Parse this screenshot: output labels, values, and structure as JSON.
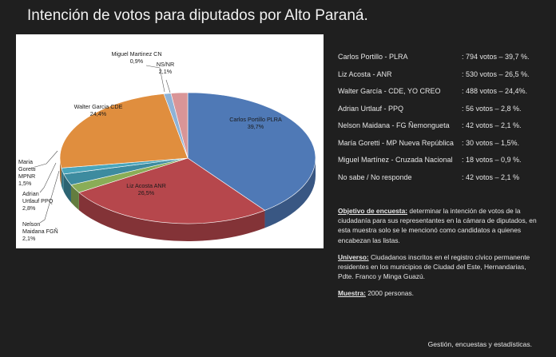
{
  "title": "Intención de votos para diputados por Alto Paraná.",
  "chart_data": {
    "type": "pie",
    "slices": [
      {
        "label": "Carlos Portillo PLRA",
        "value": 39.7,
        "pct_text": "39,7%",
        "color": "#4f79b6"
      },
      {
        "label": "Liz Acosta ANR",
        "value": 26.5,
        "pct_text": "26,5%",
        "color": "#b6474c"
      },
      {
        "label": "Nelson Maidana FGÑ",
        "value": 2.1,
        "pct_text": "2,1%",
        "color": "#8aad57"
      },
      {
        "label": "Adrian Urtlauf PPQ",
        "value": 2.8,
        "pct_text": "2,8%",
        "color": "#3d8b9f"
      },
      {
        "label": "Maria Goretti MPNR",
        "value": 1.5,
        "pct_text": "1,5%",
        "color": "#4aa5bb"
      },
      {
        "label": "Walter Garcia CDE",
        "value": 24.4,
        "pct_text": "24,4%",
        "color": "#e08e3e"
      },
      {
        "label": "Miguel Martinez CN",
        "value": 0.9,
        "pct_text": "0,9%",
        "color": "#8eb2d6"
      },
      {
        "label": "NS/NR",
        "value": 2.1,
        "pct_text": "2,1%",
        "color": "#d99597"
      }
    ]
  },
  "results": [
    {
      "name": "Carlos Portillo -  PLRA",
      "votes": ": 794 votos – 39,7 %."
    },
    {
      "name": "Liz Acosta - ANR",
      "votes": ": 530 votos – 26,5 %."
    },
    {
      "name": "Walter García - CDE, YO CREO",
      "votes": ": 488 votos – 24,4%."
    },
    {
      "name": "Adrian Urtlauf - PPQ",
      "votes": ": 56 votos – 2,8 %."
    },
    {
      "name": "Nelson Maidana - FG Ñemongueta",
      "votes": ": 42 votos – 2,1 %."
    },
    {
      "name": "María Goretti - MP Nueva República",
      "votes": ": 30 votos – 1,5%."
    },
    {
      "name": "Miguel Martínez - Cruzada Nacional",
      "votes": ": 18 votos – 0,9 %."
    },
    {
      "name": "No sabe / No responde",
      "votes": ": 42 votos – 2,1 %"
    }
  ],
  "notes": {
    "objective_label": "Objetivo de encuesta:",
    "objective_text": " determinar la intención de votos de la ciudadanía para sus representantes en la cámara de diputados, en esta muestra solo se le mencionó como candidatos a quienes encabezan las listas.",
    "universe_label": "Universo:",
    "universe_text": " Ciudadanos inscritos en el registro cívico permanente residentes en los municipios de Ciudad del Este, Hernandarias, Pdte. Franco y Minga Guazú.",
    "sample_label": "Muestra:",
    "sample_text": " 2000 personas."
  },
  "footer": "Gestión, encuestas y estadísticas."
}
